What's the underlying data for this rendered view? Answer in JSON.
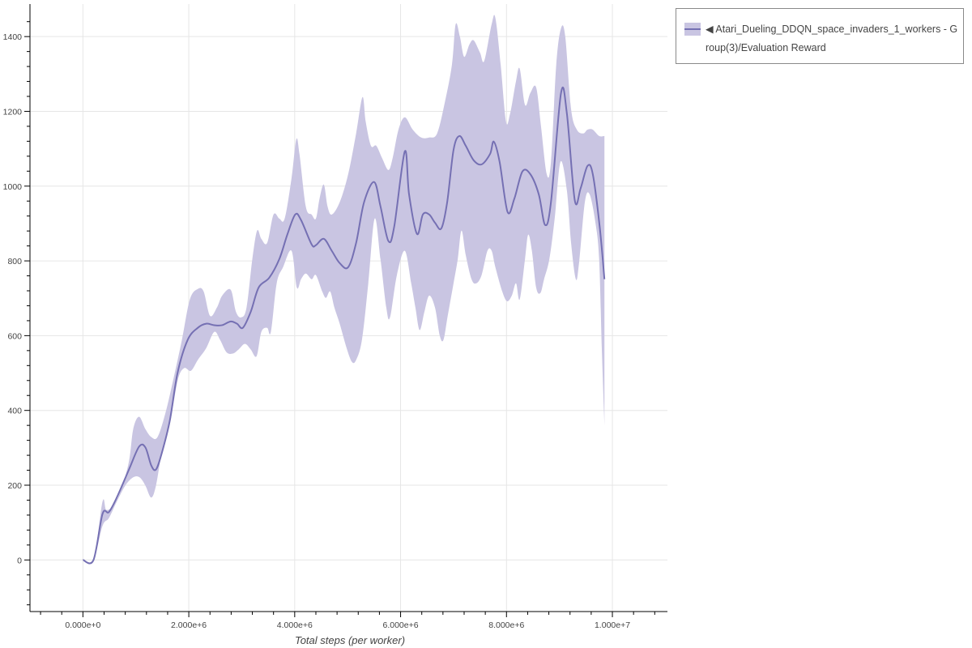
{
  "chart_data": {
    "type": "line",
    "title": "",
    "xlabel": "Total steps (per worker)",
    "ylabel": "",
    "xlim": [
      -1000000.0,
      11040000.0
    ],
    "ylim": [
      -138,
      1487
    ],
    "grid": true,
    "legend_placement": "outside-top-right",
    "x_ticks": [
      0,
      2000000.0,
      4000000.0,
      6000000.0,
      8000000.0,
      10000000.0
    ],
    "x_tick_labels": [
      "0.000e+0",
      "2.000e+6",
      "4.000e+6",
      "6.000e+6",
      "8.000e+6",
      "1.000e+7"
    ],
    "y_ticks": [
      0,
      200,
      400,
      600,
      800,
      1000,
      1200,
      1400
    ],
    "y_tick_labels": [
      "0",
      "200",
      "400",
      "600",
      "800",
      "1000",
      "1200",
      "1400"
    ],
    "colors": {
      "line": "#7570b3",
      "band": "#c9c5e2",
      "grid": "#e6e6e6"
    },
    "series": [
      {
        "name": "◀ Atari_Dueling_DDQN_space_invaders_1_workers - Group(3)/Evaluation Reward",
        "mean": {
          "x": [
            0,
            200000.0,
            370000.0,
            490000.0,
            640000.0,
            870000.0,
            1060000.0,
            1180000.0,
            1290000.0,
            1380000.0,
            1490000.0,
            1640000.0,
            1790000.0,
            1980000.0,
            2170000.0,
            2330000.0,
            2480000.0,
            2630000.0,
            2790000.0,
            2910000.0,
            3020000.0,
            3170000.0,
            3320000.0,
            3520000.0,
            3710000.0,
            3860000.0,
            4010000.0,
            4120000.0,
            4320000.0,
            4400000.0,
            4550000.0,
            4700000.0,
            4850000.0,
            5010000.0,
            5160000.0,
            5310000.0,
            5500000.0,
            5620000.0,
            5770000.0,
            5880000.0,
            6080000.0,
            6160000.0,
            6310000.0,
            6420000.0,
            6540000.0,
            6650000.0,
            6770000.0,
            6880000.0,
            7000000.0,
            7110000.0,
            7230000.0,
            7380000.0,
            7530000.0,
            7690000.0,
            7760000.0,
            7870000.0,
            8020000.0,
            8150000.0,
            8300000.0,
            8450000.0,
            8610000.0,
            8730000.0,
            8840000.0,
            9030000.0,
            9140000.0,
            9290000.0,
            9400000.0,
            9530000.0,
            9630000.0,
            9760000.0,
            9850000.0
          ],
          "y": [
            0,
            0,
            123,
            128,
            167,
            242,
            303,
            301,
            253,
            242,
            286,
            372,
            502,
            589,
            621,
            632,
            628,
            628,
            638,
            632,
            621,
            664,
            729,
            755,
            805,
            870,
            924,
            909,
            844,
            842,
            859,
            827,
            794,
            783,
            848,
            957,
            1011,
            946,
            853,
            892,
            1093,
            978,
            872,
            924,
            924,
            902,
            887,
            957,
            1097,
            1134,
            1108,
            1069,
            1058,
            1086,
            1119,
            1065,
            931,
            967,
            1039,
            1032,
            978,
            896,
            957,
            1249,
            1195,
            962,
            994,
            1054,
            1032,
            892,
            751
          ]
        },
        "upper": {
          "x": [
            0,
            200000.0,
            370000.0,
            440000.0,
            570000.0,
            720000.0,
            870000.0,
            950000.0,
            1060000.0,
            1180000.0,
            1290000.0,
            1410000.0,
            1560000.0,
            1720000.0,
            1870000.0,
            2020000.0,
            2170000.0,
            2280000.0,
            2400000.0,
            2530000.0,
            2630000.0,
            2790000.0,
            2890000.0,
            2990000.0,
            3090000.0,
            3200000.0,
            3290000.0,
            3370000.0,
            3480000.0,
            3600000.0,
            3710000.0,
            3810000.0,
            3940000.0,
            4030000.0,
            4090000.0,
            4210000.0,
            4320000.0,
            4400000.0,
            4470000.0,
            4550000.0,
            4620000.0,
            4700000.0,
            4850000.0,
            5010000.0,
            5160000.0,
            5280000.0,
            5340000.0,
            5440000.0,
            5540000.0,
            5650000.0,
            5770000.0,
            5850000.0,
            5960000.0,
            6080000.0,
            6230000.0,
            6390000.0,
            6540000.0,
            6690000.0,
            6840000.0,
            6970000.0,
            7040000.0,
            7120000.0,
            7200000.0,
            7300000.0,
            7380000.0,
            7500000.0,
            7580000.0,
            7720000.0,
            7790000.0,
            7890000.0,
            7990000.0,
            8070000.0,
            8180000.0,
            8250000.0,
            8350000.0,
            8450000.0,
            8560000.0,
            8650000.0,
            8760000.0,
            8840000.0,
            8940000.0,
            9030000.0,
            9110000.0,
            9220000.0,
            9330000.0,
            9450000.0,
            9530000.0,
            9630000.0,
            9750000.0,
            9850000.0
          ],
          "y": [
            0,
            0,
            156,
            134,
            145,
            188,
            264,
            350,
            383,
            350,
            329,
            329,
            394,
            491,
            589,
            697,
            725,
            718,
            653,
            675,
            707,
            723,
            664,
            649,
            675,
            805,
            881,
            859,
            848,
            924,
            913,
            913,
            1021,
            1125,
            1086,
            945,
            924,
            913,
            967,
            1004,
            946,
            924,
            957,
            1032,
            1141,
            1238,
            1173,
            1108,
            1108,
            1075,
            1043,
            1075,
            1151,
            1184,
            1151,
            1130,
            1130,
            1141,
            1227,
            1325,
            1433,
            1400,
            1346,
            1379,
            1390,
            1357,
            1335,
            1433,
            1450,
            1325,
            1173,
            1195,
            1281,
            1314,
            1217,
            1249,
            1264,
            1162,
            1032,
            1065,
            1325,
            1422,
            1400,
            1206,
            1151,
            1141,
            1151,
            1151,
            1134,
            1134
          ]
        },
        "lower": {
          "x": [
            0,
            200000.0,
            370000.0,
            490000.0,
            640000.0,
            800000.0,
            950000.0,
            1070000.0,
            1180000.0,
            1290000.0,
            1380000.0,
            1490000.0,
            1640000.0,
            1790000.0,
            1910000.0,
            2040000.0,
            2170000.0,
            2330000.0,
            2480000.0,
            2590000.0,
            2710000.0,
            2830000.0,
            2940000.0,
            3060000.0,
            3170000.0,
            3280000.0,
            3370000.0,
            3480000.0,
            3550000.0,
            3660000.0,
            3780000.0,
            3940000.0,
            4040000.0,
            4120000.0,
            4210000.0,
            4320000.0,
            4400000.0,
            4520000.0,
            4590000.0,
            4670000.0,
            4750000.0,
            4850000.0,
            4980000.0,
            5080000.0,
            5160000.0,
            5270000.0,
            5390000.0,
            5510000.0,
            5620000.0,
            5730000.0,
            5800000.0,
            5930000.0,
            6080000.0,
            6200000.0,
            6280000.0,
            6360000.0,
            6450000.0,
            6540000.0,
            6650000.0,
            6740000.0,
            6810000.0,
            6890000.0,
            7000000.0,
            7080000.0,
            7150000.0,
            7230000.0,
            7340000.0,
            7430000.0,
            7530000.0,
            7640000.0,
            7720000.0,
            7790000.0,
            7920000.0,
            8010000.0,
            8100000.0,
            8180000.0,
            8250000.0,
            8350000.0,
            8410000.0,
            8480000.0,
            8560000.0,
            8640000.0,
            8710000.0,
            8810000.0,
            8910000.0,
            9020000.0,
            9140000.0,
            9220000.0,
            9310000.0,
            9370000.0,
            9480000.0,
            9570000.0,
            9680000.0,
            9750000.0,
            9800000.0,
            9850000.0
          ],
          "y": [
            0,
            0,
            91,
            112,
            156,
            199,
            221,
            221,
            199,
            167,
            199,
            286,
            361,
            480,
            513,
            506,
            535,
            567,
            610,
            589,
            556,
            552,
            563,
            578,
            563,
            545,
            610,
            621,
            610,
            740,
            783,
            827,
            729,
            751,
            766,
            751,
            762,
            718,
            701,
            718,
            675,
            632,
            567,
            530,
            535,
            589,
            740,
            913,
            805,
            675,
            649,
            762,
            827,
            740,
            675,
            615,
            664,
            707,
            675,
            600,
            589,
            653,
            740,
            805,
            881,
            816,
            751,
            740,
            762,
            827,
            827,
            783,
            718,
            692,
            707,
            740,
            697,
            805,
            870,
            827,
            729,
            714,
            751,
            805,
            913,
            1065,
            989,
            848,
            751,
            794,
            957,
            978,
            902,
            805,
            567,
            361
          ]
        }
      }
    ]
  }
}
